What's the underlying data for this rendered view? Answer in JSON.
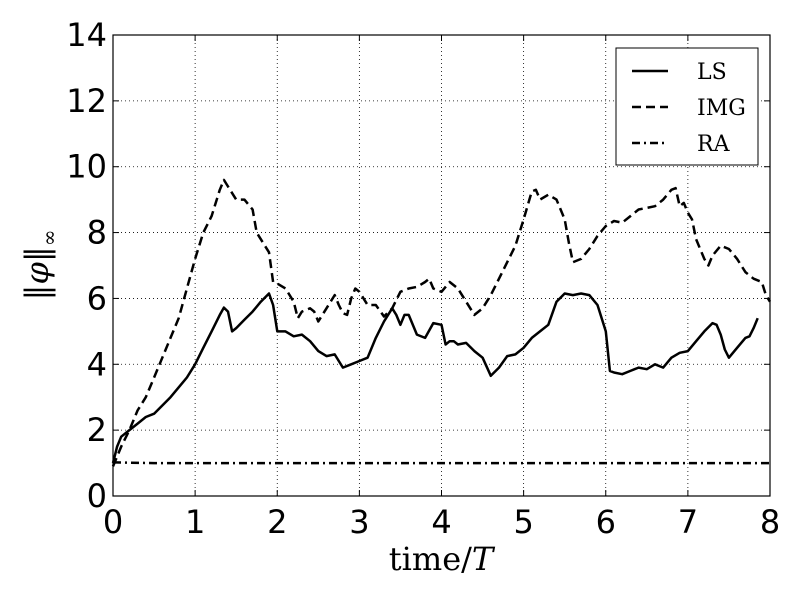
{
  "chart_data": {
    "type": "line",
    "xlabel": "time/T",
    "ylabel": "‖φ‖∞",
    "xlim": [
      0,
      8
    ],
    "ylim": [
      0,
      14
    ],
    "xticks": [
      "0",
      "1",
      "2",
      "3",
      "4",
      "5",
      "6",
      "7",
      "8"
    ],
    "yticks": [
      "0",
      "2",
      "4",
      "6",
      "8",
      "10",
      "12",
      "14"
    ],
    "grid": true,
    "legend_position": "top-right",
    "series": [
      {
        "name": "LS",
        "style": "solid",
        "color": "#000000",
        "points": [
          [
            0,
            1.0
          ],
          [
            0.05,
            1.5
          ],
          [
            0.1,
            1.8
          ],
          [
            0.2,
            2.0
          ],
          [
            0.3,
            2.2
          ],
          [
            0.4,
            2.4
          ],
          [
            0.5,
            2.5
          ],
          [
            0.7,
            3.0
          ],
          [
            0.9,
            3.6
          ],
          [
            1.0,
            4.0
          ],
          [
            1.1,
            4.5
          ],
          [
            1.2,
            5.0
          ],
          [
            1.3,
            5.5
          ],
          [
            1.35,
            5.72
          ],
          [
            1.4,
            5.6
          ],
          [
            1.45,
            5.0
          ],
          [
            1.5,
            5.1
          ],
          [
            1.6,
            5.35
          ],
          [
            1.7,
            5.6
          ],
          [
            1.8,
            5.9
          ],
          [
            1.9,
            6.15
          ],
          [
            1.95,
            5.8
          ],
          [
            2.0,
            5.0
          ],
          [
            2.1,
            5.0
          ],
          [
            2.2,
            4.85
          ],
          [
            2.3,
            4.9
          ],
          [
            2.4,
            4.7
          ],
          [
            2.5,
            4.4
          ],
          [
            2.6,
            4.25
          ],
          [
            2.7,
            4.3
          ],
          [
            2.8,
            3.9
          ],
          [
            2.9,
            4.0
          ],
          [
            3.0,
            4.1
          ],
          [
            3.1,
            4.2
          ],
          [
            3.2,
            4.8
          ],
          [
            3.3,
            5.3
          ],
          [
            3.4,
            5.7
          ],
          [
            3.45,
            5.5
          ],
          [
            3.5,
            5.2
          ],
          [
            3.55,
            5.5
          ],
          [
            3.6,
            5.5
          ],
          [
            3.7,
            4.9
          ],
          [
            3.8,
            4.8
          ],
          [
            3.9,
            5.25
          ],
          [
            4.0,
            5.2
          ],
          [
            4.05,
            4.6
          ],
          [
            4.1,
            4.7
          ],
          [
            4.15,
            4.7
          ],
          [
            4.2,
            4.6
          ],
          [
            4.3,
            4.65
          ],
          [
            4.4,
            4.4
          ],
          [
            4.5,
            4.2
          ],
          [
            4.6,
            3.65
          ],
          [
            4.7,
            3.9
          ],
          [
            4.8,
            4.25
          ],
          [
            4.9,
            4.3
          ],
          [
            5.0,
            4.5
          ],
          [
            5.1,
            4.8
          ],
          [
            5.2,
            5.0
          ],
          [
            5.3,
            5.2
          ],
          [
            5.4,
            5.9
          ],
          [
            5.5,
            6.15
          ],
          [
            5.6,
            6.1
          ],
          [
            5.7,
            6.15
          ],
          [
            5.8,
            6.1
          ],
          [
            5.9,
            5.8
          ],
          [
            6.0,
            5.0
          ],
          [
            6.05,
            3.8
          ],
          [
            6.1,
            3.75
          ],
          [
            6.2,
            3.7
          ],
          [
            6.3,
            3.8
          ],
          [
            6.4,
            3.9
          ],
          [
            6.5,
            3.85
          ],
          [
            6.6,
            4.0
          ],
          [
            6.7,
            3.9
          ],
          [
            6.8,
            4.2
          ],
          [
            6.9,
            4.35
          ],
          [
            7.0,
            4.4
          ],
          [
            7.1,
            4.7
          ],
          [
            7.2,
            5.0
          ],
          [
            7.3,
            5.25
          ],
          [
            7.35,
            5.2
          ],
          [
            7.4,
            4.9
          ],
          [
            7.45,
            4.45
          ],
          [
            7.5,
            4.2
          ],
          [
            7.6,
            4.5
          ],
          [
            7.7,
            4.8
          ],
          [
            7.75,
            4.85
          ],
          [
            7.8,
            5.1
          ],
          [
            7.85,
            5.4
          ]
        ]
      },
      {
        "name": "IMG",
        "style": "dashed",
        "color": "#000000",
        "points": [
          [
            0,
            0.9
          ],
          [
            0.1,
            1.5
          ],
          [
            0.2,
            2.0
          ],
          [
            0.3,
            2.6
          ],
          [
            0.4,
            3.0
          ],
          [
            0.5,
            3.6
          ],
          [
            0.6,
            4.2
          ],
          [
            0.7,
            4.8
          ],
          [
            0.8,
            5.4
          ],
          [
            0.9,
            6.3
          ],
          [
            1.0,
            7.2
          ],
          [
            1.1,
            8.0
          ],
          [
            1.2,
            8.5
          ],
          [
            1.3,
            9.3
          ],
          [
            1.35,
            9.6
          ],
          [
            1.4,
            9.4
          ],
          [
            1.5,
            9.0
          ],
          [
            1.6,
            9.0
          ],
          [
            1.65,
            8.85
          ],
          [
            1.7,
            8.7
          ],
          [
            1.75,
            8.0
          ],
          [
            1.8,
            7.8
          ],
          [
            1.9,
            7.4
          ],
          [
            1.95,
            6.5
          ],
          [
            2.0,
            6.45
          ],
          [
            2.1,
            6.3
          ],
          [
            2.2,
            5.9
          ],
          [
            2.25,
            5.4
          ],
          [
            2.3,
            5.6
          ],
          [
            2.4,
            5.7
          ],
          [
            2.45,
            5.6
          ],
          [
            2.5,
            5.3
          ],
          [
            2.6,
            5.7
          ],
          [
            2.7,
            6.1
          ],
          [
            2.75,
            5.8
          ],
          [
            2.8,
            5.55
          ],
          [
            2.85,
            5.5
          ],
          [
            2.9,
            6.0
          ],
          [
            2.95,
            6.3
          ],
          [
            3.0,
            6.2
          ],
          [
            3.1,
            5.8
          ],
          [
            3.2,
            5.8
          ],
          [
            3.3,
            5.45
          ],
          [
            3.4,
            5.7
          ],
          [
            3.5,
            6.2
          ],
          [
            3.6,
            6.3
          ],
          [
            3.7,
            6.35
          ],
          [
            3.8,
            6.5
          ],
          [
            3.85,
            6.6
          ],
          [
            3.9,
            6.3
          ],
          [
            4.0,
            6.2
          ],
          [
            4.1,
            6.5
          ],
          [
            4.2,
            6.3
          ],
          [
            4.3,
            5.9
          ],
          [
            4.4,
            5.5
          ],
          [
            4.5,
            5.7
          ],
          [
            4.6,
            6.1
          ],
          [
            4.7,
            6.6
          ],
          [
            4.8,
            7.1
          ],
          [
            4.9,
            7.6
          ],
          [
            5.0,
            8.4
          ],
          [
            5.1,
            9.25
          ],
          [
            5.15,
            9.3
          ],
          [
            5.2,
            9.0
          ],
          [
            5.3,
            9.15
          ],
          [
            5.4,
            9.0
          ],
          [
            5.5,
            8.4
          ],
          [
            5.55,
            7.7
          ],
          [
            5.6,
            7.1
          ],
          [
            5.7,
            7.2
          ],
          [
            5.8,
            7.5
          ],
          [
            5.9,
            7.9
          ],
          [
            6.0,
            8.2
          ],
          [
            6.1,
            8.35
          ],
          [
            6.2,
            8.3
          ],
          [
            6.3,
            8.5
          ],
          [
            6.4,
            8.7
          ],
          [
            6.5,
            8.75
          ],
          [
            6.6,
            8.8
          ],
          [
            6.7,
            9.0
          ],
          [
            6.8,
            9.3
          ],
          [
            6.85,
            9.35
          ],
          [
            6.9,
            8.8
          ],
          [
            6.95,
            8.9
          ],
          [
            7.0,
            8.6
          ],
          [
            7.05,
            8.4
          ],
          [
            7.1,
            7.8
          ],
          [
            7.2,
            7.2
          ],
          [
            7.25,
            7.0
          ],
          [
            7.3,
            7.3
          ],
          [
            7.4,
            7.6
          ],
          [
            7.5,
            7.5
          ],
          [
            7.6,
            7.2
          ],
          [
            7.7,
            6.8
          ],
          [
            7.8,
            6.6
          ],
          [
            7.9,
            6.5
          ],
          [
            7.95,
            6.1
          ],
          [
            8.0,
            5.9
          ]
        ]
      },
      {
        "name": "RA",
        "style": "dashdot",
        "color": "#000000",
        "points": [
          [
            0,
            1.02
          ],
          [
            0.5,
            1.0
          ],
          [
            1.0,
            1.0
          ],
          [
            2.0,
            1.0
          ],
          [
            3.0,
            1.0
          ],
          [
            4.0,
            1.0
          ],
          [
            5.0,
            1.0
          ],
          [
            6.0,
            1.0
          ],
          [
            7.0,
            1.0
          ],
          [
            8.0,
            1.0
          ]
        ]
      }
    ]
  }
}
